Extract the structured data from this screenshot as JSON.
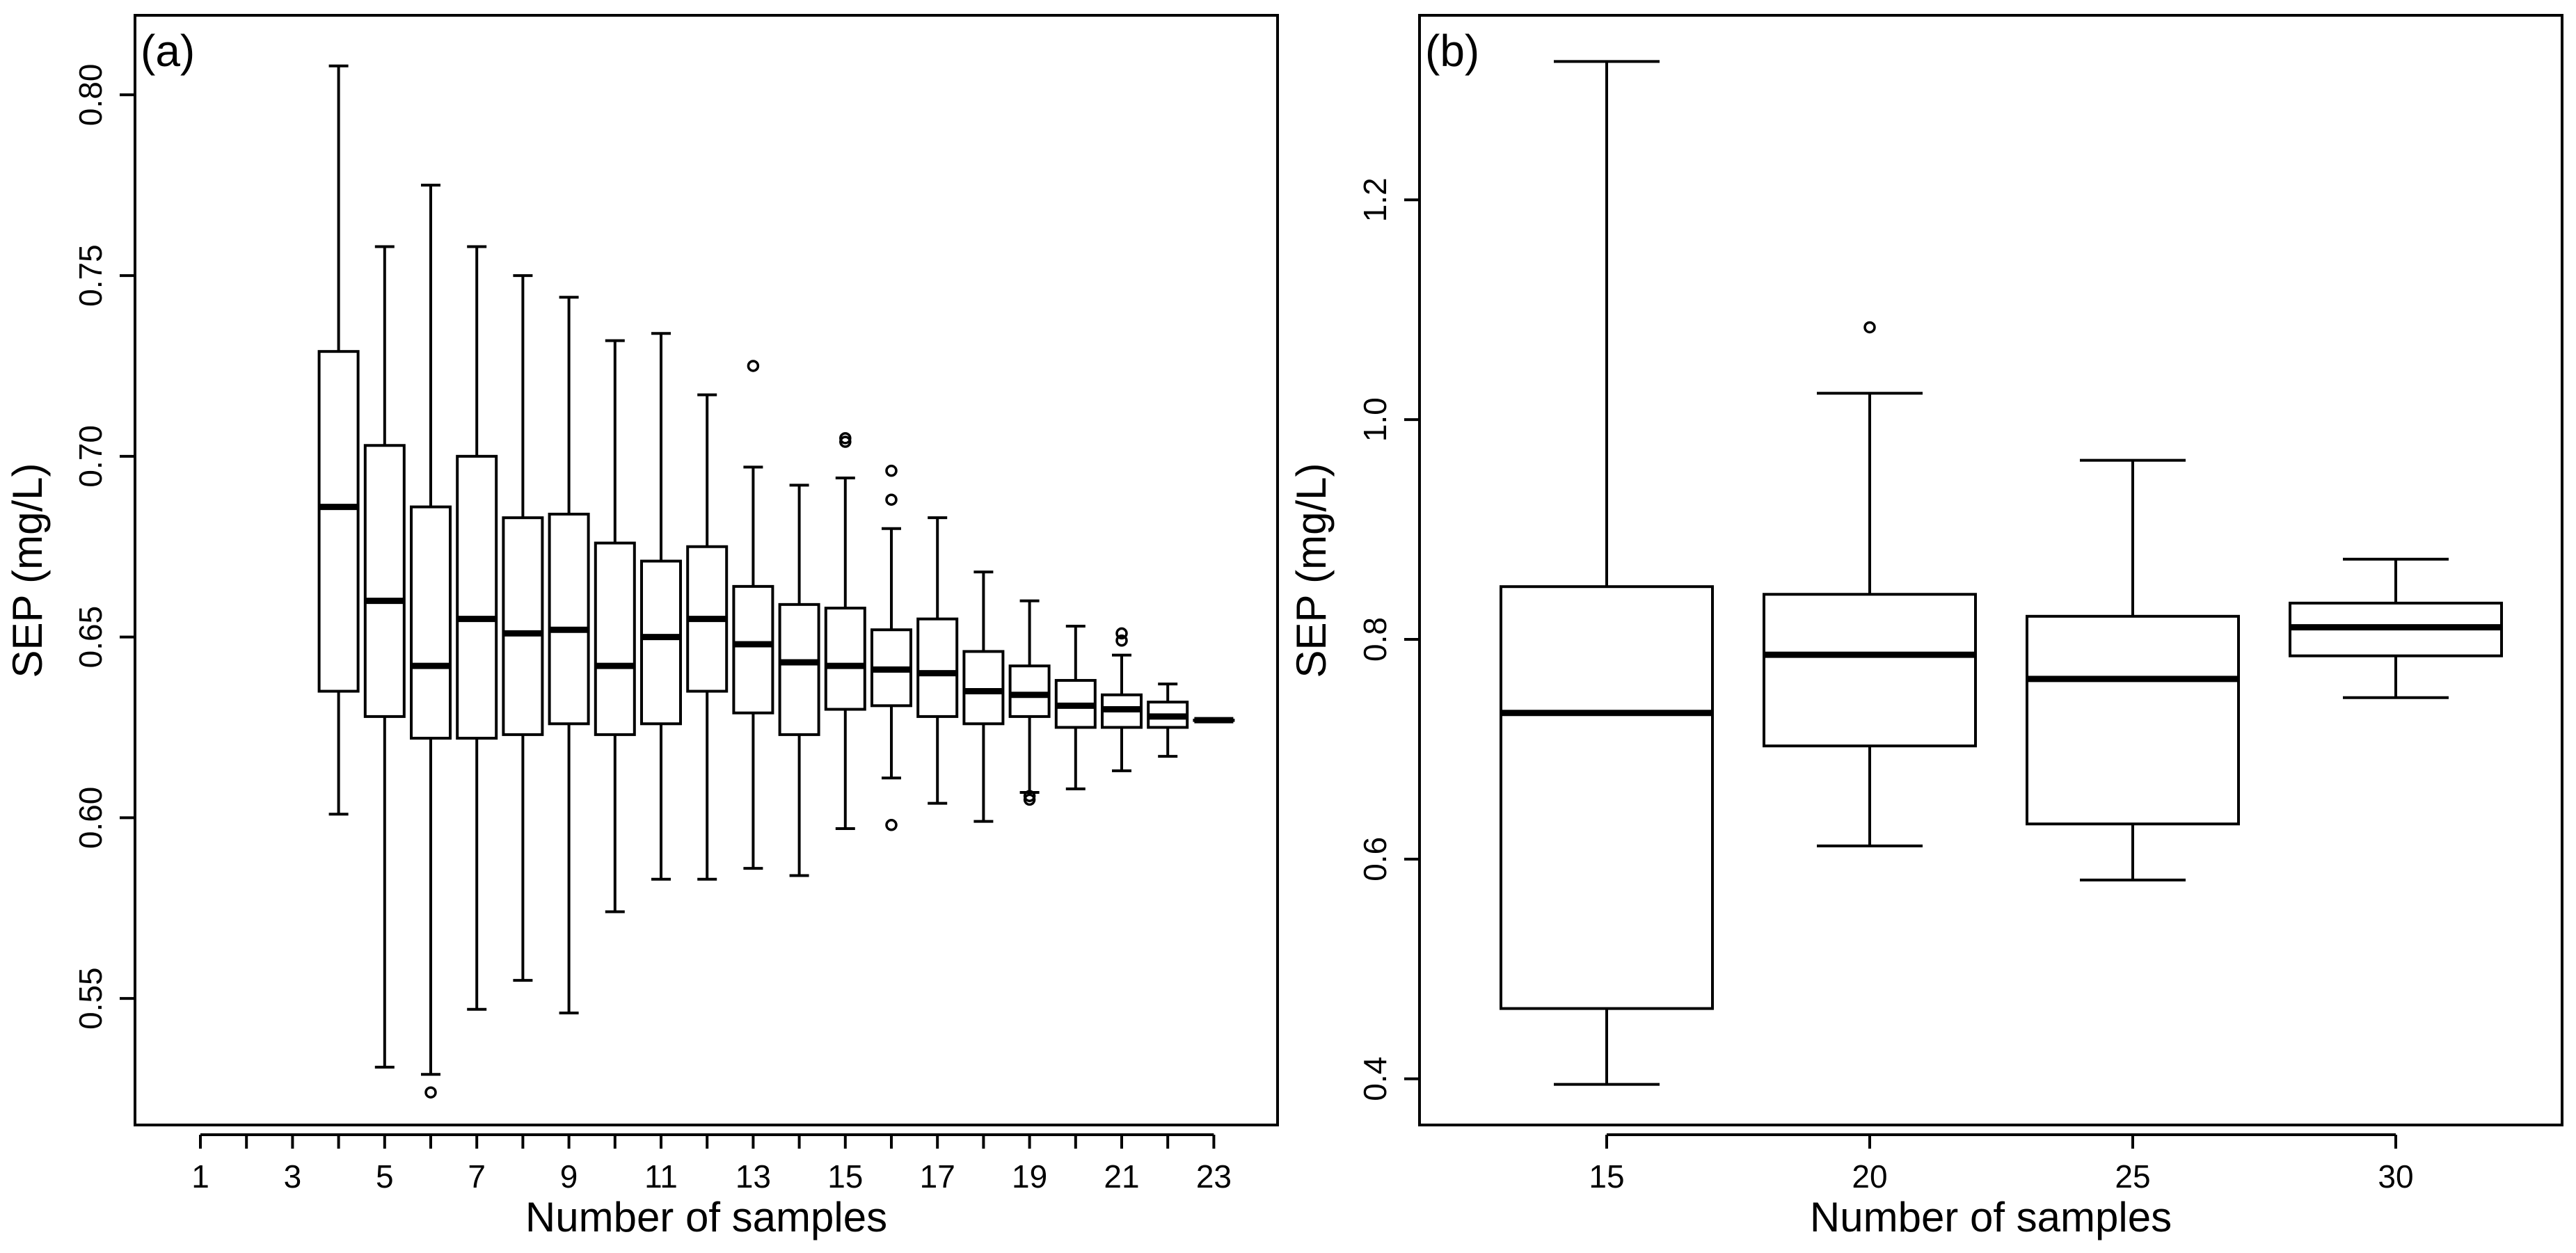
{
  "chart_data": [
    {
      "panel": "(a)",
      "type": "boxplot",
      "xlabel": "Number of samples",
      "ylabel": "SEP (mg/L)",
      "ylim": [
        0.515,
        0.822
      ],
      "yticks": [
        "0.55",
        "0.60",
        "0.65",
        "0.70",
        "0.75",
        "0.80"
      ],
      "xtick_positions": [
        1,
        2,
        3,
        4,
        5,
        6,
        7,
        8,
        9,
        10,
        11,
        12,
        13,
        14,
        15,
        16,
        17,
        18,
        19,
        20,
        21,
        22,
        23
      ],
      "xtick_labels": [
        "1",
        "3",
        "5",
        "7",
        "9",
        "11",
        "13",
        "15",
        "17",
        "19",
        "21",
        "23"
      ],
      "boxes": [
        {
          "x": 4,
          "min": 0.601,
          "q1": 0.635,
          "median": 0.686,
          "q3": 0.729,
          "max": 0.808,
          "outliers": []
        },
        {
          "x": 5,
          "min": 0.531,
          "q1": 0.628,
          "median": 0.66,
          "q3": 0.703,
          "max": 0.758,
          "outliers": []
        },
        {
          "x": 6,
          "min": 0.529,
          "q1": 0.622,
          "median": 0.642,
          "q3": 0.686,
          "max": 0.775,
          "outliers": [
            0.524
          ]
        },
        {
          "x": 7,
          "min": 0.547,
          "q1": 0.622,
          "median": 0.655,
          "q3": 0.7,
          "max": 0.758,
          "outliers": []
        },
        {
          "x": 8,
          "min": 0.555,
          "q1": 0.623,
          "median": 0.651,
          "q3": 0.683,
          "max": 0.75,
          "outliers": []
        },
        {
          "x": 9,
          "min": 0.546,
          "q1": 0.626,
          "median": 0.652,
          "q3": 0.684,
          "max": 0.744,
          "outliers": []
        },
        {
          "x": 10,
          "min": 0.574,
          "q1": 0.623,
          "median": 0.642,
          "q3": 0.676,
          "max": 0.732,
          "outliers": []
        },
        {
          "x": 11,
          "min": 0.583,
          "q1": 0.626,
          "median": 0.65,
          "q3": 0.671,
          "max": 0.734,
          "outliers": []
        },
        {
          "x": 12,
          "min": 0.583,
          "q1": 0.635,
          "median": 0.655,
          "q3": 0.675,
          "max": 0.717,
          "outliers": []
        },
        {
          "x": 13,
          "min": 0.586,
          "q1": 0.629,
          "median": 0.648,
          "q3": 0.664,
          "max": 0.697,
          "outliers": [
            0.725
          ]
        },
        {
          "x": 14,
          "min": 0.584,
          "q1": 0.623,
          "median": 0.643,
          "q3": 0.659,
          "max": 0.692,
          "outliers": []
        },
        {
          "x": 15,
          "min": 0.597,
          "q1": 0.63,
          "median": 0.642,
          "q3": 0.658,
          "max": 0.694,
          "outliers": [
            0.704,
            0.705
          ]
        },
        {
          "x": 16,
          "min": 0.611,
          "q1": 0.631,
          "median": 0.641,
          "q3": 0.652,
          "max": 0.68,
          "outliers": [
            0.688,
            0.696,
            0.598
          ]
        },
        {
          "x": 17,
          "min": 0.604,
          "q1": 0.628,
          "median": 0.64,
          "q3": 0.655,
          "max": 0.683,
          "outliers": []
        },
        {
          "x": 18,
          "min": 0.599,
          "q1": 0.626,
          "median": 0.635,
          "q3": 0.646,
          "max": 0.668,
          "outliers": []
        },
        {
          "x": 19,
          "min": 0.607,
          "q1": 0.628,
          "median": 0.634,
          "q3": 0.642,
          "max": 0.66,
          "outliers": [
            0.606,
            0.605
          ]
        },
        {
          "x": 20,
          "min": 0.608,
          "q1": 0.625,
          "median": 0.631,
          "q3": 0.638,
          "max": 0.653,
          "outliers": []
        },
        {
          "x": 21,
          "min": 0.613,
          "q1": 0.625,
          "median": 0.63,
          "q3": 0.634,
          "max": 0.645,
          "outliers": [
            0.649,
            0.651
          ]
        },
        {
          "x": 22,
          "min": 0.617,
          "q1": 0.625,
          "median": 0.628,
          "q3": 0.632,
          "max": 0.637,
          "outliers": []
        },
        {
          "x": 23,
          "min": 0.627,
          "q1": 0.627,
          "median": 0.627,
          "q3": 0.627,
          "max": 0.627,
          "outliers": []
        }
      ]
    },
    {
      "panel": "(b)",
      "type": "boxplot",
      "xlabel": "Number of samples",
      "ylabel": "SEP (mg/L)",
      "ylim": [
        0.358,
        1.368
      ],
      "yticks": [
        "0.4",
        "0.6",
        "0.8",
        "1.0",
        "1.2"
      ],
      "xtick_labels": [
        "15",
        "20",
        "25",
        "30"
      ],
      "boxes": [
        {
          "label": "15",
          "min": 0.395,
          "q1": 0.464,
          "median": 0.733,
          "q3": 0.848,
          "max": 1.326,
          "outliers": []
        },
        {
          "label": "20",
          "min": 0.612,
          "q1": 0.703,
          "median": 0.786,
          "q3": 0.841,
          "max": 1.024,
          "outliers": [
            1.084
          ]
        },
        {
          "label": "25",
          "min": 0.581,
          "q1": 0.632,
          "median": 0.764,
          "q3": 0.821,
          "max": 0.963,
          "outliers": []
        },
        {
          "label": "30",
          "min": 0.747,
          "q1": 0.785,
          "median": 0.811,
          "q3": 0.833,
          "max": 0.873,
          "outliers": []
        }
      ]
    }
  ]
}
